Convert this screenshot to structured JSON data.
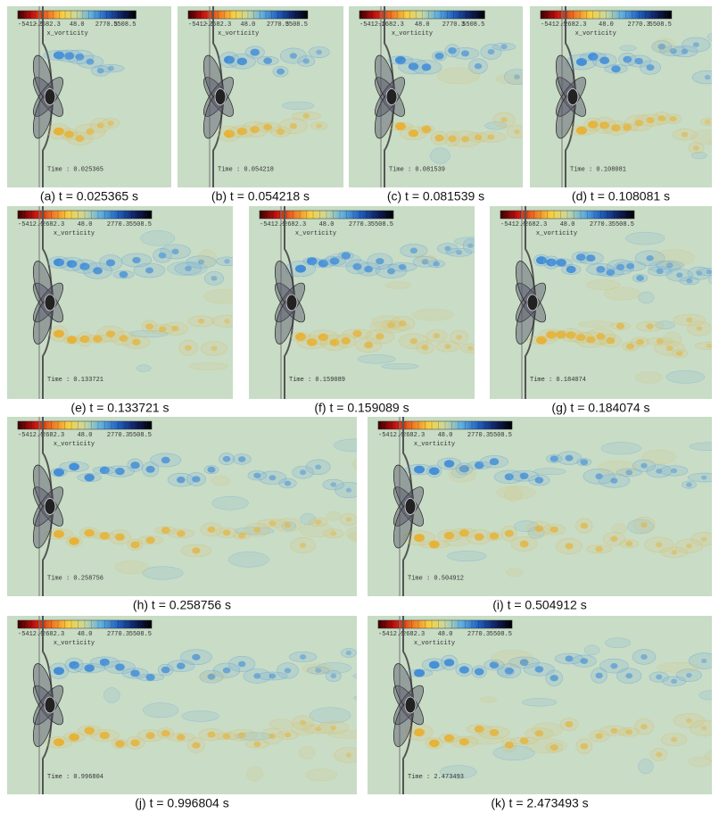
{
  "colorbar": {
    "ticks": [
      "-5412.5",
      "-2682.3",
      "48.0",
      "2770.3",
      "5508.5"
    ],
    "label": "x_vorticity"
  },
  "panels": [
    {
      "caption": "(a) t = 0.025365 s",
      "time": "Time : 0.025365"
    },
    {
      "caption": "(b) t = 0.054218 s",
      "time": "Time : 0.054218"
    },
    {
      "caption": "(c) t = 0.081539 s",
      "time": "Time : 0.081539"
    },
    {
      "caption": "(d) t = 0.108081 s",
      "time": "Time : 0.108081"
    },
    {
      "caption": "(e) t = 0.133721 s",
      "time": "Time : 0.133721"
    },
    {
      "caption": "(f) t = 0.159089 s",
      "time": "Time : 0.159089"
    },
    {
      "caption": "(g) t = 0.184074 s",
      "time": "Time : 0.184074"
    },
    {
      "caption": "(h) t = 0.258756 s",
      "time": "Time : 0.258756"
    },
    {
      "caption": "(i) t = 0.504912 s",
      "time": "Time : 0.504912"
    },
    {
      "caption": "(j) t = 0.996804 s",
      "time": "Time : 0.996804"
    },
    {
      "caption": "(k) t = 2.473493 s",
      "time": "Time : 2.473493"
    }
  ]
}
